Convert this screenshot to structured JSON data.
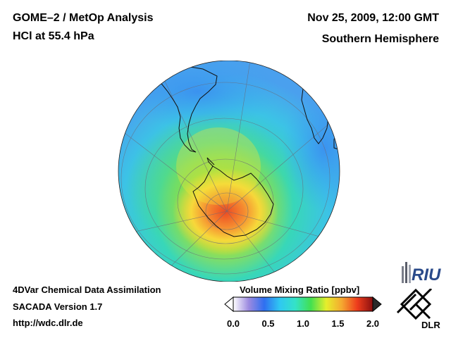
{
  "header": {
    "title": "GOME–2 / MetOp Analysis",
    "species": "HCl at 55.4 hPa",
    "datetime": "Nov 25, 2009, 12:00 GMT",
    "region": "Southern Hemisphere"
  },
  "footer": {
    "method": "4DVar Chemical Data Assimilation",
    "version": "SACADA Version 1.7",
    "url": "http://wdc.dlr.de"
  },
  "colorbar": {
    "title": "Volume Mixing Ratio [ppbv]",
    "ticks": [
      "0.0",
      "0.5",
      "1.0",
      "1.5",
      "2.0"
    ],
    "min": 0.0,
    "max": 2.0,
    "stops": [
      "#ffffff",
      "#9c8ae0",
      "#2f6ff0",
      "#2fc8f2",
      "#34e2c8",
      "#42e050",
      "#e6ee2c",
      "#f5a830",
      "#ee3c1c",
      "#8a1010"
    ]
  },
  "map": {
    "projection": "orthographic, south polar view",
    "colors": {
      "ocean_low": "#4aa9ee",
      "mid": "#38d7c6",
      "green": "#6fe04a",
      "yellow": "#f4e838",
      "orange": "#f6a43a",
      "red": "#ec5a28"
    }
  },
  "logos": {
    "riu": "RIU",
    "dlr": "DLR"
  }
}
